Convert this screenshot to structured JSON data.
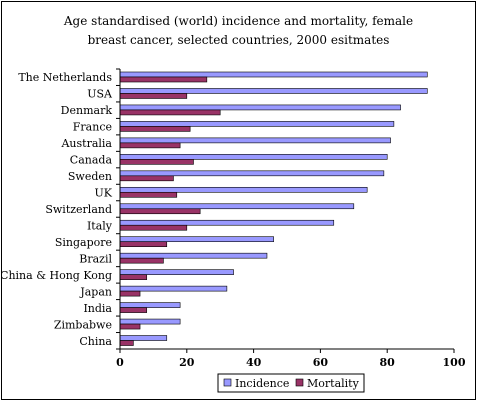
{
  "chart_data": {
    "type": "bar",
    "orientation": "horizontal",
    "title": "Age standardised (world) incidence and mortality, female\nbreast cancer, selected countries, 2000 esitmates",
    "xlabel": "",
    "ylabel": "",
    "categories": [
      "The Netherlands",
      "USA",
      "Denmark",
      "France",
      "Australia",
      "Canada",
      "Sweden",
      "UK",
      "Switzerland",
      "Italy",
      "Singapore",
      "Brazil",
      "China & Hong Kong",
      "Japan",
      "India",
      "Zimbabwe",
      "China"
    ],
    "series": [
      {
        "name": "Incidence",
        "color": "#9999ff",
        "values": [
          92,
          92,
          84,
          82,
          81,
          80,
          79,
          74,
          70,
          64,
          46,
          44,
          34,
          32,
          18,
          18,
          14
        ]
      },
      {
        "name": "Mortality",
        "color": "#993366",
        "values": [
          26,
          20,
          30,
          21,
          18,
          22,
          16,
          17,
          24,
          20,
          14,
          13,
          8,
          6,
          8,
          6,
          4
        ]
      }
    ],
    "xlim": [
      0,
      100
    ],
    "xticks": [
      0,
      20,
      40,
      60,
      80,
      100
    ],
    "grid": false,
    "legend": "bottom"
  }
}
